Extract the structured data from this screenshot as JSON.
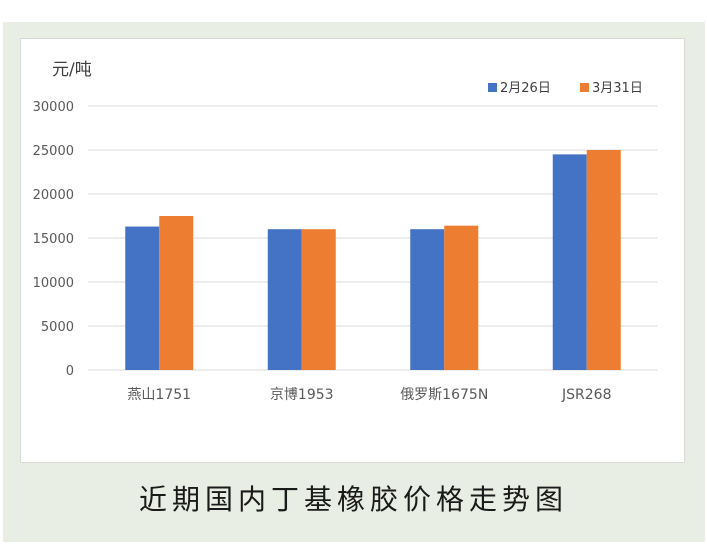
{
  "chart_data": {
    "type": "bar",
    "ylabel": "元/吨",
    "ylim": [
      0,
      30000
    ],
    "yticks": [
      "0",
      "5000",
      "10000",
      "15000",
      "20000",
      "25000",
      "30000"
    ],
    "categories": [
      "燕山1751",
      "京博1953",
      "俄罗斯1675N",
      "JSR268"
    ],
    "series": [
      {
        "name": "2月26日",
        "color": "#4472c4",
        "values": [
          16300,
          16000,
          16000,
          24500
        ]
      },
      {
        "name": "3月31日",
        "color": "#ed7d31",
        "values": [
          17500,
          16000,
          16400,
          25000
        ]
      }
    ],
    "grid": true,
    "legend": "top-right"
  },
  "caption": "近期国内丁基橡胶价格走势图"
}
